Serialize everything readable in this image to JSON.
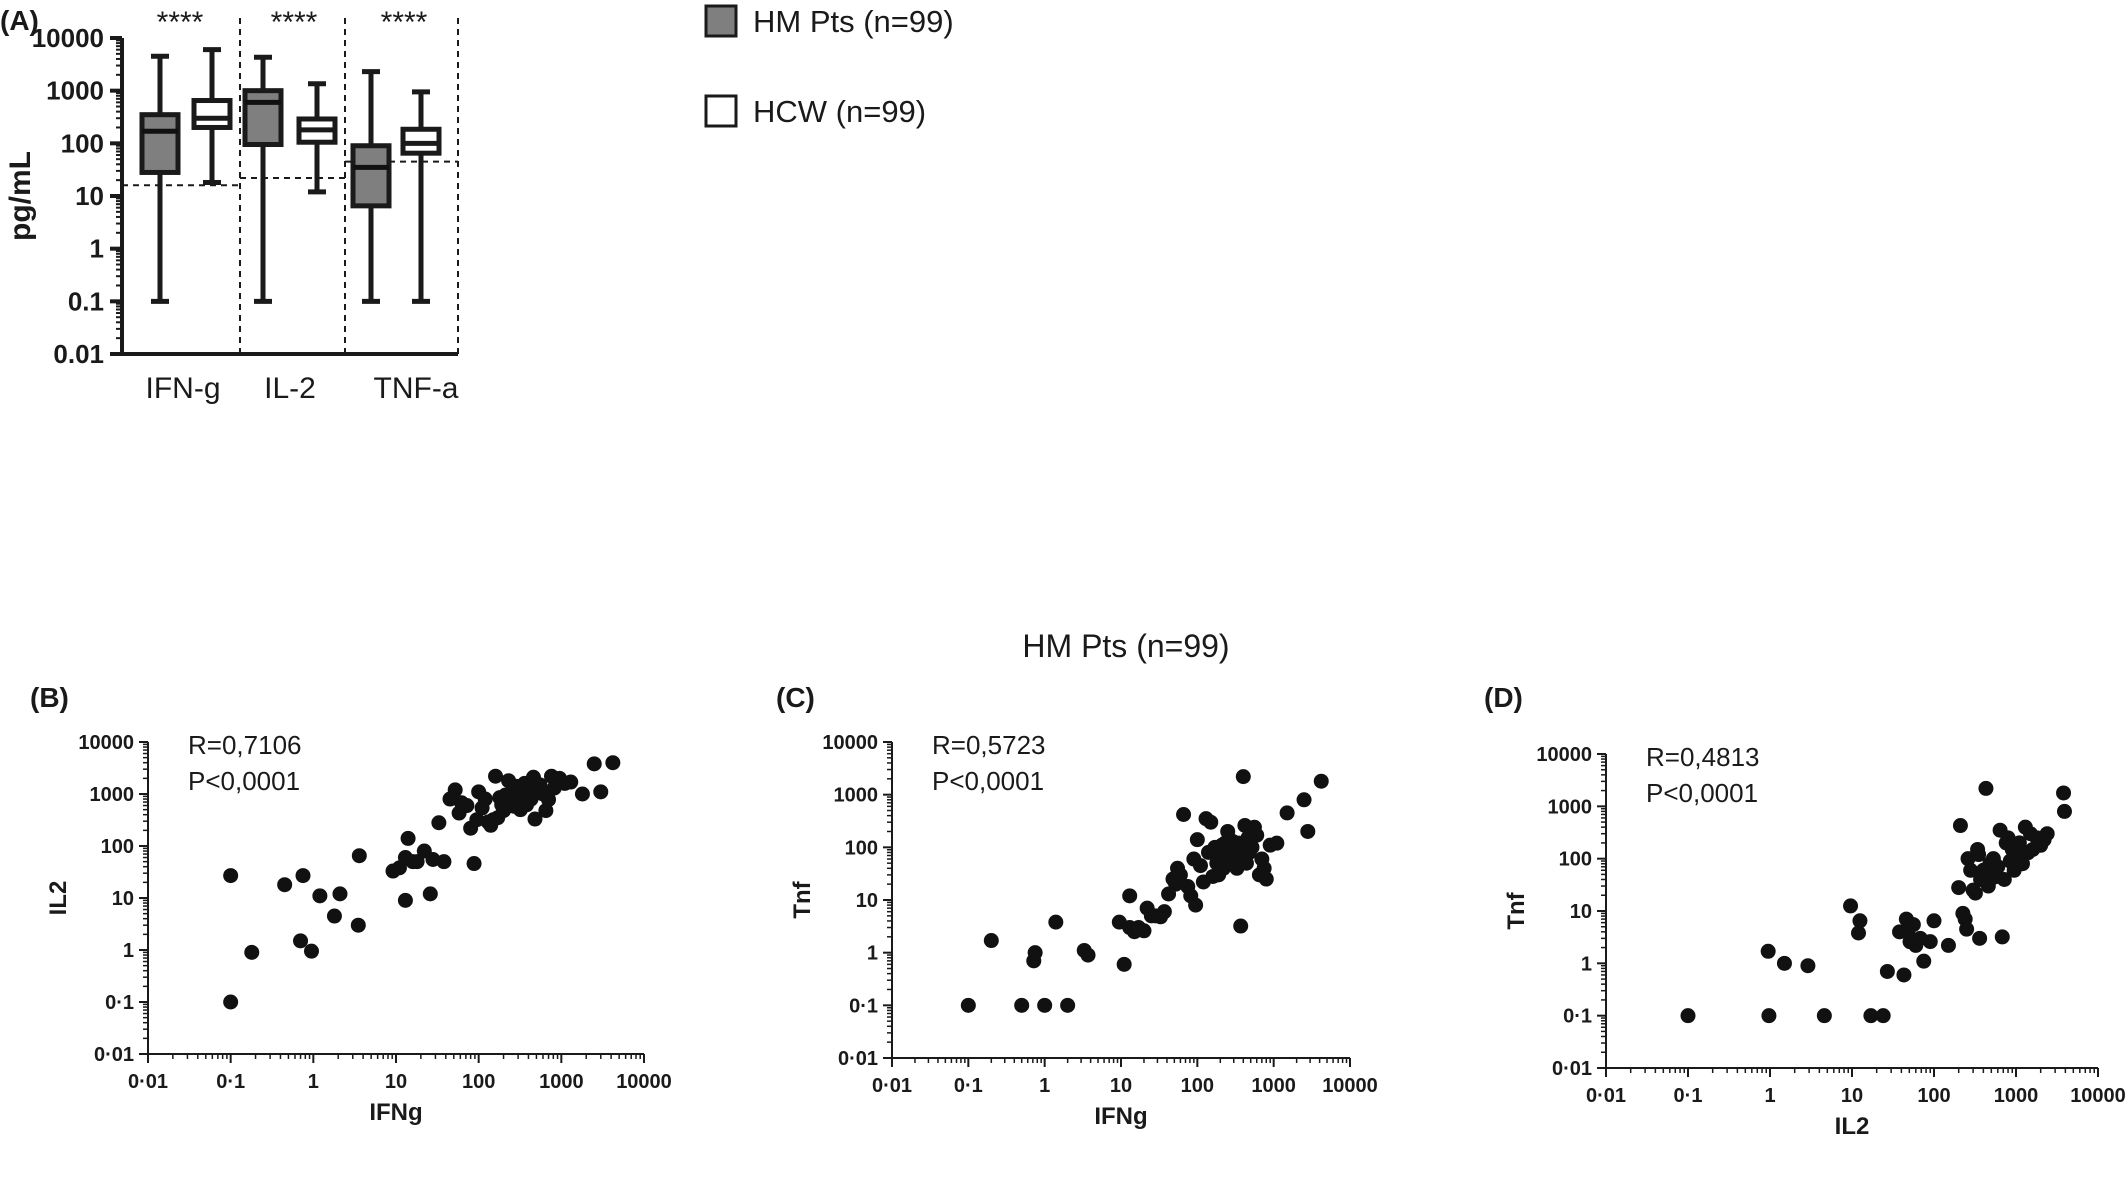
{
  "figure": {
    "panel_labels": [
      "(A)",
      "(B)",
      "(C)",
      "(D)"
    ],
    "section_title": "HM Pts (n=99)"
  },
  "legend": {
    "items": [
      {
        "label": "HM Pts (n=99)",
        "fill": "#7f7f7f"
      },
      {
        "label": "HCW (n=99)",
        "fill": "#ffffff"
      }
    ]
  },
  "colors": {
    "hm_fill": "#7f7f7f",
    "hcw_fill": "#ffffff",
    "stroke": "#1a1a1a"
  },
  "chart_data": [
    {
      "panel": "(A)",
      "type": "box",
      "ylabel": "pg/mL",
      "yscale": "log",
      "ylim": [
        0.01,
        10000
      ],
      "yticks": [
        "0.01",
        "0.1",
        "1",
        "10",
        "100",
        "1000",
        "10000"
      ],
      "categories": [
        "IFN-g",
        "IL-2",
        "TNF-a"
      ],
      "significance": [
        "****",
        "****",
        "****"
      ],
      "thresholds": [
        16,
        22,
        45
      ],
      "series": [
        {
          "name": "HM Pts (n=99)",
          "boxes": [
            {
              "min": 0.1,
              "q1": 28,
              "median": 170,
              "q3": 350,
              "max": 4500
            },
            {
              "min": 0.1,
              "q1": 95,
              "median": 600,
              "q3": 1000,
              "max": 4300
            },
            {
              "min": 0.1,
              "q1": 6.5,
              "median": 35,
              "q3": 90,
              "max": 2300
            }
          ]
        },
        {
          "name": "HCW (n=99)",
          "boxes": [
            {
              "min": 18,
              "q1": 200,
              "median": 300,
              "q3": 650,
              "max": 6000
            },
            {
              "min": 12,
              "q1": 105,
              "median": 180,
              "q3": 290,
              "max": 1350
            },
            {
              "min": 0.1,
              "q1": 65,
              "median": 100,
              "q3": 185,
              "max": 950
            }
          ]
        }
      ]
    },
    {
      "panel": "(B)",
      "type": "scatter",
      "xlabel": "IFNg",
      "ylabel": "IL2",
      "xscale": "log",
      "yscale": "log",
      "xlim": [
        0.01,
        10000
      ],
      "ylim": [
        0.01,
        10000
      ],
      "ticks": [
        "0·01",
        "0·1",
        "1",
        "10",
        "100",
        "1000",
        "10000"
      ],
      "annotation": [
        "R=0,7106",
        "P<0,0001"
      ],
      "points": [
        [
          0.1,
          0.1
        ],
        [
          0.1,
          27
        ],
        [
          0.18,
          0.9
        ],
        [
          0.45,
          18
        ],
        [
          0.7,
          1.5
        ],
        [
          0.75,
          27
        ],
        [
          0.95,
          0.95
        ],
        [
          1.2,
          11
        ],
        [
          1.8,
          4.5
        ],
        [
          2.1,
          12
        ],
        [
          3.5,
          3
        ],
        [
          3.6,
          65
        ],
        [
          9.2,
          33
        ],
        [
          11,
          38
        ],
        [
          13,
          9
        ],
        [
          13,
          60
        ],
        [
          14,
          140
        ],
        [
          16,
          50
        ],
        [
          18,
          50
        ],
        [
          22,
          80
        ],
        [
          26,
          12
        ],
        [
          28,
          55
        ],
        [
          33,
          280
        ],
        [
          38,
          50
        ],
        [
          45,
          800
        ],
        [
          52,
          1200
        ],
        [
          58,
          430
        ],
        [
          62,
          680
        ],
        [
          72,
          600
        ],
        [
          80,
          220
        ],
        [
          88,
          46
        ],
        [
          95,
          320
        ],
        [
          100,
          1100
        ],
        [
          110,
          540
        ],
        [
          120,
          800
        ],
        [
          130,
          290
        ],
        [
          140,
          250
        ],
        [
          150,
          320
        ],
        [
          160,
          2200
        ],
        [
          170,
          350
        ],
        [
          180,
          850
        ],
        [
          190,
          620
        ],
        [
          200,
          480
        ],
        [
          210,
          950
        ],
        [
          230,
          1800
        ],
        [
          240,
          1000
        ],
        [
          250,
          680
        ],
        [
          270,
          580
        ],
        [
          290,
          1400
        ],
        [
          300,
          750
        ],
        [
          320,
          500
        ],
        [
          340,
          900
        ],
        [
          360,
          1600
        ],
        [
          380,
          620
        ],
        [
          400,
          1100
        ],
        [
          430,
          800
        ],
        [
          460,
          2100
        ],
        [
          480,
          330
        ],
        [
          500,
          1300
        ],
        [
          550,
          1500
        ],
        [
          600,
          1000
        ],
        [
          650,
          480
        ],
        [
          700,
          780
        ],
        [
          760,
          2200
        ],
        [
          820,
          1300
        ],
        [
          880,
          1800
        ],
        [
          950,
          2000
        ],
        [
          1100,
          1600
        ],
        [
          1300,
          1700
        ],
        [
          1800,
          1000
        ],
        [
          2500,
          3800
        ],
        [
          3000,
          1100
        ],
        [
          4200,
          4000
        ]
      ]
    },
    {
      "panel": "(C)",
      "type": "scatter",
      "xlabel": "IFNg",
      "ylabel": "Tnf",
      "xscale": "log",
      "yscale": "log",
      "xlim": [
        0.01,
        10000
      ],
      "ylim": [
        0.01,
        10000
      ],
      "ticks": [
        "0·01",
        "0·1",
        "1",
        "10",
        "100",
        "1000",
        "10000"
      ],
      "annotation": [
        "R=0,5723",
        "P<0,0001"
      ],
      "points": [
        [
          0.1,
          0.1
        ],
        [
          0.2,
          1.7
        ],
        [
          0.5,
          0.1
        ],
        [
          0.72,
          0.7
        ],
        [
          0.75,
          1
        ],
        [
          1,
          0.1
        ],
        [
          1.4,
          3.8
        ],
        [
          2,
          0.1
        ],
        [
          3.3,
          1.1
        ],
        [
          3.7,
          0.9
        ],
        [
          9.5,
          3.8
        ],
        [
          11,
          0.6
        ],
        [
          13,
          3
        ],
        [
          13,
          12
        ],
        [
          15,
          2.5
        ],
        [
          17,
          3
        ],
        [
          20,
          2.6
        ],
        [
          22,
          7
        ],
        [
          25,
          5
        ],
        [
          28,
          5
        ],
        [
          33,
          4.8
        ],
        [
          37,
          6
        ],
        [
          42,
          13
        ],
        [
          48,
          25
        ],
        [
          52,
          20
        ],
        [
          55,
          40
        ],
        [
          60,
          30
        ],
        [
          66,
          420
        ],
        [
          75,
          18
        ],
        [
          82,
          12
        ],
        [
          90,
          60
        ],
        [
          95,
          8
        ],
        [
          100,
          140
        ],
        [
          110,
          45
        ],
        [
          120,
          22
        ],
        [
          130,
          350
        ],
        [
          140,
          80
        ],
        [
          150,
          300
        ],
        [
          160,
          28
        ],
        [
          170,
          100
        ],
        [
          180,
          50
        ],
        [
          190,
          30
        ],
        [
          200,
          70
        ],
        [
          210,
          110
        ],
        [
          220,
          40
        ],
        [
          230,
          120
        ],
        [
          240,
          60
        ],
        [
          250,
          200
        ],
        [
          260,
          90
        ],
        [
          270,
          50
        ],
        [
          290,
          130
        ],
        [
          310,
          80
        ],
        [
          330,
          40
        ],
        [
          350,
          120
        ],
        [
          370,
          3.2
        ],
        [
          380,
          70
        ],
        [
          400,
          2200
        ],
        [
          420,
          260
        ],
        [
          440,
          50
        ],
        [
          460,
          150
        ],
        [
          480,
          80
        ],
        [
          520,
          100
        ],
        [
          560,
          240
        ],
        [
          600,
          170
        ],
        [
          650,
          30
        ],
        [
          700,
          60
        ],
        [
          750,
          40
        ],
        [
          800,
          25
        ],
        [
          900,
          110
        ],
        [
          1100,
          120
        ],
        [
          1500,
          450
        ],
        [
          2500,
          800
        ],
        [
          2800,
          200
        ],
        [
          4200,
          1800
        ]
      ]
    },
    {
      "panel": "(D)",
      "type": "scatter",
      "xlabel": "IL2",
      "ylabel": "Tnf",
      "xscale": "log",
      "yscale": "log",
      "xlim": [
        0.01,
        10000
      ],
      "ylim": [
        0.01,
        10000
      ],
      "ticks": [
        "0·01",
        "0·1",
        "1",
        "10",
        "100",
        "1000",
        "10000"
      ],
      "annotation": [
        "R=0,4813",
        "P<0,0001"
      ],
      "points": [
        [
          0.1,
          0.1
        ],
        [
          0.95,
          1.7
        ],
        [
          0.97,
          0.1
        ],
        [
          1.5,
          1
        ],
        [
          2.9,
          0.9
        ],
        [
          4.6,
          0.1
        ],
        [
          9.6,
          12.5
        ],
        [
          12,
          3.8
        ],
        [
          12.5,
          6.5
        ],
        [
          17,
          0.1
        ],
        [
          24,
          0.1
        ],
        [
          27,
          0.7
        ],
        [
          38,
          4
        ],
        [
          43,
          0.6
        ],
        [
          46,
          7
        ],
        [
          48,
          4
        ],
        [
          51,
          2.6
        ],
        [
          56,
          5.5
        ],
        [
          60,
          2.2
        ],
        [
          68,
          3
        ],
        [
          75,
          1.1
        ],
        [
          90,
          2.6
        ],
        [
          100,
          6.5
        ],
        [
          150,
          2.2
        ],
        [
          200,
          28
        ],
        [
          210,
          430
        ],
        [
          225,
          9
        ],
        [
          240,
          7
        ],
        [
          250,
          4.5
        ],
        [
          260,
          100
        ],
        [
          280,
          60
        ],
        [
          300,
          25
        ],
        [
          320,
          22
        ],
        [
          340,
          150
        ],
        [
          350,
          120
        ],
        [
          360,
          3
        ],
        [
          370,
          40
        ],
        [
          400,
          60
        ],
        [
          430,
          2200
        ],
        [
          460,
          30
        ],
        [
          480,
          80
        ],
        [
          500,
          50
        ],
        [
          530,
          100
        ],
        [
          560,
          45
        ],
        [
          600,
          70
        ],
        [
          640,
          350
        ],
        [
          680,
          3.2
        ],
        [
          720,
          40
        ],
        [
          760,
          200
        ],
        [
          800,
          250
        ],
        [
          850,
          90
        ],
        [
          900,
          150
        ],
        [
          950,
          60
        ],
        [
          1000,
          120
        ],
        [
          1100,
          200
        ],
        [
          1200,
          80
        ],
        [
          1300,
          400
        ],
        [
          1400,
          130
        ],
        [
          1500,
          300
        ],
        [
          1600,
          150
        ],
        [
          1800,
          250
        ],
        [
          2000,
          180
        ],
        [
          2200,
          230
        ],
        [
          2400,
          300
        ],
        [
          3800,
          1800
        ],
        [
          3900,
          800
        ]
      ]
    }
  ]
}
